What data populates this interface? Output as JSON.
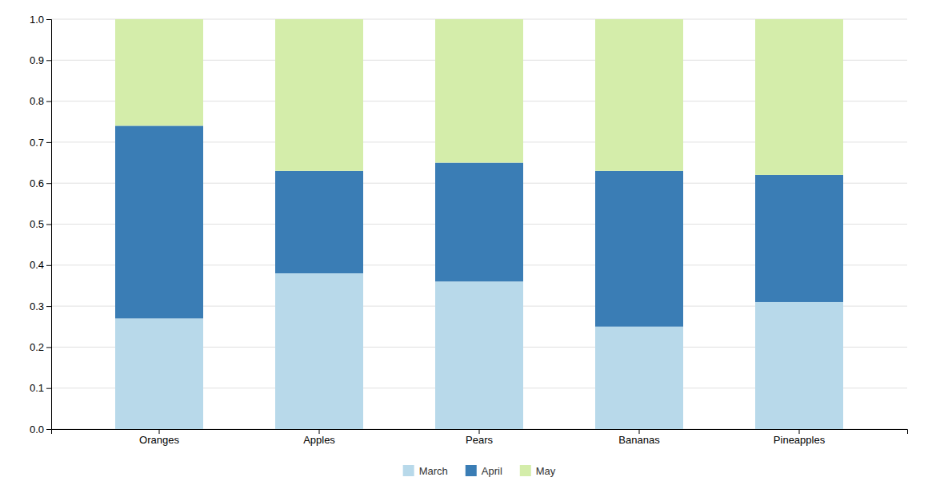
{
  "chart_data": {
    "type": "bar",
    "stacked": true,
    "categories": [
      "Oranges",
      "Apples",
      "Pears",
      "Bananas",
      "Pineapples"
    ],
    "series": [
      {
        "name": "March",
        "color": "#b8d9ea",
        "values": [
          0.27,
          0.38,
          0.36,
          0.25,
          0.31
        ]
      },
      {
        "name": "April",
        "color": "#3a7db5",
        "values": [
          0.47,
          0.25,
          0.29,
          0.38,
          0.31
        ]
      },
      {
        "name": "May",
        "color": "#d4edaa",
        "values": [
          0.26,
          0.37,
          0.35,
          0.37,
          0.38
        ]
      }
    ],
    "ylim": [
      0,
      1.0
    ],
    "yticks": [
      {
        "value": 0,
        "label": "0.0"
      },
      0.1,
      0.2,
      0.3,
      0.4,
      0.5,
      0.6,
      0.7,
      0.8,
      0.9,
      {
        "value": 1,
        "label": "1.0"
      }
    ],
    "grid": true,
    "legend": "bottom"
  }
}
